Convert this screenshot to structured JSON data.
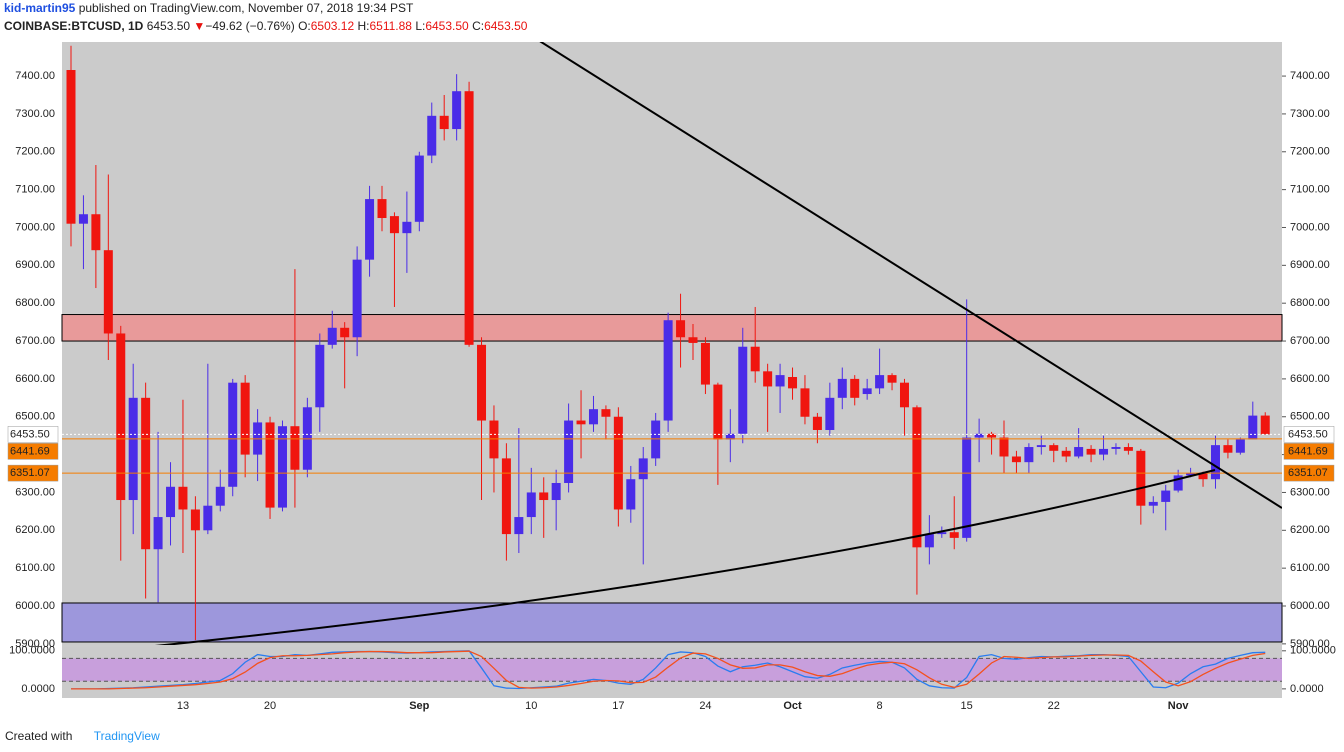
{
  "header": {
    "author": "kid-martin95",
    "published": "published on TradingView.com, November 07, 2018 19:34 PST",
    "symbol": "COINBASE:BTCUSD, 1D",
    "last": "6453.50",
    "arrow": "▼",
    "change": "−49.62 (−0.76%)",
    "o_label": "O:",
    "o_value": "6503.12",
    "h_label": "H:",
    "h_value": "6511.88",
    "l_label": "L:",
    "l_value": "6453.50",
    "c_label": "C:",
    "c_value": "6453.50"
  },
  "footer": {
    "created": "Created with",
    "brand": "TradingView"
  },
  "chart_data": [
    {
      "type": "candlestick",
      "categories": [
        null,
        null,
        null,
        null,
        null,
        null,
        null,
        null,
        null,
        "13",
        null,
        null,
        null,
        null,
        null,
        null,
        "20",
        null,
        null,
        null,
        null,
        null,
        null,
        null,
        null,
        null,
        null,
        null,
        "Sep",
        null,
        null,
        null,
        null,
        null,
        null,
        null,
        null,
        "10",
        null,
        null,
        null,
        null,
        null,
        null,
        "17",
        null,
        null,
        null,
        null,
        null,
        null,
        "24",
        null,
        null,
        null,
        null,
        null,
        null,
        "Oct",
        null,
        null,
        null,
        null,
        null,
        null,
        "8",
        null,
        null,
        null,
        null,
        null,
        null,
        "15",
        null,
        null,
        null,
        null,
        null,
        null,
        "22",
        null,
        null,
        null,
        null,
        null,
        null,
        null,
        null,
        null,
        "Nov",
        null,
        null,
        null,
        null,
        null,
        null,
        null
      ],
      "open": [
        7416,
        7010,
        7035,
        6940,
        6720,
        6280,
        6550,
        6150,
        6235,
        6315,
        6255,
        6200,
        6265,
        6315,
        6590,
        6400,
        6485,
        6260,
        6475,
        6360,
        6525,
        6690,
        6735,
        6710,
        6915,
        7075,
        7030,
        6985,
        7015,
        7190,
        7295,
        7260,
        7360,
        6690,
        6490,
        6390,
        6190,
        6235,
        6300,
        6280,
        6325,
        6490,
        6480,
        6520,
        6500,
        6255,
        6335,
        6390,
        6490,
        6755,
        6710,
        6695,
        6585,
        6440,
        6455,
        6685,
        6620,
        6580,
        6605,
        6575,
        6500,
        6465,
        6550,
        6600,
        6560,
        6575,
        6610,
        6590,
        6525,
        6155,
        6190,
        6195,
        6180,
        6445,
        6455,
        6445,
        6395,
        6380,
        6420,
        6425,
        6410,
        6395,
        6415,
        6400,
        6415,
        6420,
        6410,
        6265,
        6275,
        6305,
        6345,
        6350,
        6335,
        6425,
        6405,
        6440,
        6503.12
      ],
      "high": [
        7480,
        7085,
        7165,
        7140,
        6740,
        6640,
        6590,
        6460,
        6380,
        6545,
        6290,
        6640,
        6360,
        6600,
        6610,
        6520,
        6500,
        6490,
        6890,
        6550,
        6720,
        6780,
        6750,
        6950,
        7110,
        7110,
        7040,
        7095,
        7200,
        7330,
        7350,
        7405,
        7385,
        6710,
        6530,
        6430,
        6470,
        6365,
        6340,
        6360,
        6535,
        6570,
        6555,
        6530,
        6525,
        6370,
        6420,
        6510,
        6775,
        6825,
        6745,
        6710,
        6590,
        6520,
        6735,
        6790,
        6640,
        6640,
        6630,
        6610,
        6510,
        6590,
        6630,
        6610,
        6600,
        6680,
        6615,
        6600,
        6530,
        6240,
        6210,
        6290,
        6810,
        6495,
        6460,
        6490,
        6410,
        6430,
        6450,
        6430,
        6420,
        6470,
        6425,
        6450,
        6430,
        6430,
        6415,
        6290,
        6320,
        6360,
        6365,
        6355,
        6450,
        6440,
        6445,
        6540,
        6511.88
      ],
      "low": [
        6950,
        6890,
        6840,
        6650,
        6120,
        6190,
        6020,
        6010,
        6160,
        6140,
        5910,
        6190,
        6250,
        6290,
        6340,
        6330,
        6230,
        6250,
        6260,
        6340,
        6460,
        6680,
        6575,
        6660,
        6870,
        6990,
        6790,
        6880,
        6990,
        7170,
        7230,
        7230,
        6685,
        6280,
        6300,
        6120,
        6140,
        6190,
        6180,
        6200,
        6300,
        6390,
        6460,
        6440,
        6210,
        6220,
        6110,
        6370,
        6460,
        6630,
        6650,
        6560,
        6320,
        6380,
        6430,
        6590,
        6460,
        6510,
        6545,
        6480,
        6430,
        6450,
        6520,
        6530,
        6545,
        6560,
        6570,
        6450,
        6030,
        6110,
        6180,
        6150,
        6170,
        6380,
        6400,
        6350,
        6350,
        6350,
        6400,
        6380,
        6380,
        6390,
        6380,
        6385,
        6400,
        6400,
        6215,
        6245,
        6200,
        6300,
        6340,
        6315,
        6310,
        6390,
        6400,
        6440,
        6453.5
      ],
      "close": [
        7010,
        7035,
        6940,
        6720,
        6280,
        6550,
        6150,
        6235,
        6315,
        6255,
        6200,
        6265,
        6315,
        6590,
        6400,
        6485,
        6260,
        6475,
        6360,
        6525,
        6690,
        6735,
        6710,
        6915,
        7075,
        7025,
        6985,
        7015,
        7190,
        7295,
        7260,
        7360,
        6690,
        6490,
        6390,
        6190,
        6235,
        6300,
        6280,
        6325,
        6490,
        6480,
        6520,
        6500,
        6255,
        6335,
        6390,
        6490,
        6755,
        6710,
        6695,
        6585,
        6440,
        6455,
        6685,
        6620,
        6580,
        6610,
        6575,
        6500,
        6465,
        6550,
        6600,
        6550,
        6575,
        6610,
        6590,
        6525,
        6155,
        6190,
        6195,
        6180,
        6445,
        6455,
        6445,
        6395,
        6380,
        6420,
        6425,
        6410,
        6395,
        6420,
        6400,
        6415,
        6420,
        6410,
        6265,
        6275,
        6305,
        6345,
        6350,
        6335,
        6425,
        6405,
        6440,
        6503,
        6453.5
      ],
      "up_color": "#4a2ce8",
      "down_color": "#f0150f",
      "ylim": [
        5897,
        7490
      ],
      "yticks": [
        {
          "value": 5900,
          "label": "5900.00"
        },
        {
          "value": 6000,
          "label": "6000.00"
        },
        {
          "value": 6100,
          "label": "6100.00"
        },
        {
          "value": 6200,
          "label": "6200.00"
        },
        {
          "value": 6300,
          "label": "6300.00"
        },
        {
          "value": 6400,
          "label": "6400.00"
        },
        {
          "value": 6500,
          "label": "6500.00"
        },
        {
          "value": 6600,
          "label": "6600.00"
        },
        {
          "value": 6700,
          "label": "6700.00"
        },
        {
          "value": 6800,
          "label": "6800.00"
        },
        {
          "value": 6900,
          "label": "6900.00"
        },
        {
          "value": 7000,
          "label": "7000.00"
        },
        {
          "value": 7100,
          "label": "7100.00"
        },
        {
          "value": 7200,
          "label": "7200.00"
        },
        {
          "value": 7300,
          "label": "7300.00"
        },
        {
          "value": 7400,
          "label": "7400.00"
        }
      ],
      "grid": false,
      "zones": [
        {
          "low": 6700,
          "high": 6770,
          "color": "#e89a9a"
        },
        {
          "low": 5905,
          "high": 6008,
          "color": "#9d97dc"
        }
      ],
      "price_lines": [
        {
          "value": 6453.5,
          "label": "6453.50",
          "color": "#ffffff",
          "label_color": "#000000"
        },
        {
          "value": 6441.69,
          "label": "6441.69",
          "color": "#f57c00",
          "label_color": "#ffffff"
        },
        {
          "value": 6351.07,
          "label": "6351.07",
          "color": "#f57c00",
          "label_color": "#ffffff"
        }
      ]
    },
    {
      "type": "line",
      "ylim": [
        -24,
        110
      ],
      "yticks": [
        {
          "value": 100,
          "label": "100.0000"
        },
        {
          "value": 0,
          "label": "0.0000"
        }
      ],
      "bands": [
        20,
        80
      ],
      "band_color": "#c89fdc",
      "series": [
        {
          "color": "#2a7cf0",
          "values": [
            0,
            0,
            0,
            1,
            2,
            3,
            5,
            7,
            9,
            11,
            14,
            18,
            22,
            40,
            70,
            90,
            85,
            85,
            90,
            88,
            92,
            96,
            97,
            98,
            98,
            97,
            95,
            94,
            95,
            97,
            98,
            99,
            100,
            55,
            8,
            2,
            1,
            3,
            5,
            7,
            15,
            20,
            25,
            22,
            15,
            12,
            25,
            55,
            90,
            97,
            95,
            85,
            60,
            45,
            58,
            62,
            68,
            58,
            45,
            32,
            28,
            38,
            55,
            62,
            68,
            72,
            70,
            55,
            25,
            8,
            3,
            2,
            30,
            85,
            90,
            80,
            78,
            82,
            85,
            84,
            86,
            87,
            90,
            90,
            88,
            85,
            45,
            5,
            3,
            15,
            40,
            58,
            65,
            80,
            88,
            95,
            96
          ]
        },
        {
          "color": "#f4511e",
          "values": [
            0,
            0,
            0,
            0,
            1,
            2,
            3,
            5,
            7,
            9,
            11,
            14,
            18,
            27,
            44,
            67,
            82,
            87,
            87,
            88,
            90,
            92,
            95,
            97,
            98,
            98,
            97,
            95,
            95,
            95,
            97,
            98,
            99,
            85,
            54,
            22,
            4,
            2,
            3,
            5,
            9,
            14,
            20,
            22,
            21,
            16,
            17,
            31,
            57,
            81,
            94,
            92,
            80,
            63,
            54,
            55,
            63,
            63,
            57,
            45,
            35,
            33,
            40,
            52,
            62,
            67,
            70,
            66,
            50,
            29,
            12,
            4,
            12,
            39,
            68,
            85,
            83,
            80,
            82,
            84,
            84,
            86,
            88,
            89,
            89,
            88,
            73,
            45,
            18,
            8,
            19,
            38,
            54,
            68,
            78,
            88,
            93
          ]
        }
      ]
    }
  ]
}
